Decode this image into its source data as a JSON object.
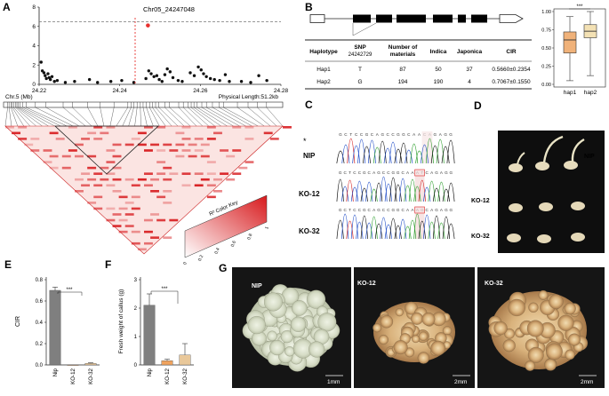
{
  "panels": {
    "A": {
      "letter": "A",
      "snp_label": "Chr05_24247048",
      "x_ticks": [
        "24.22",
        "24.24",
        "24.26",
        "24.28"
      ],
      "y_ticks": [
        "0",
        "2",
        "4",
        "6",
        "8"
      ],
      "chr_label": "Chr.5 (Mb)",
      "physical_length": "Physical Length:51.2kb",
      "color_key_title": "R² Color Key",
      "color_key_ticks": [
        "0",
        "0.2",
        "0.4",
        "0.6",
        "0.8",
        "1"
      ]
    },
    "B": {
      "letter": "B",
      "table_headers": [
        "Haplotype",
        "SNP 24242729",
        "Number of materials",
        "Indica",
        "Japonica",
        "CIR"
      ],
      "table_rows": [
        [
          "Hap1",
          "T",
          "87",
          "50",
          "37",
          "0.5660±0.2354"
        ],
        [
          "Hap2",
          "G",
          "194",
          "190",
          "4",
          "0.7067±0.1550"
        ]
      ],
      "box_y_ticks": [
        "0.00",
        "0.25",
        "0.50",
        "0.75",
        "1.00"
      ],
      "box_categories": [
        "hap1",
        "hap2"
      ],
      "significance": "***"
    },
    "C": {
      "letter": "C",
      "asterisk": "*",
      "samples": [
        {
          "label": "NIP",
          "seq": "GCTCCGCAGCCGGCAACAGAGG"
        },
        {
          "label": "KO-12",
          "seq": "GCTCCGCAGCCGGCAAATCAGAGG"
        },
        {
          "label": "KO-32",
          "seq": "GCTCCGCAGCCGGCAAAGCAGAGG"
        }
      ]
    },
    "D": {
      "letter": "D",
      "labels": [
        "NIP",
        "KO-12",
        "KO-32"
      ]
    },
    "E": {
      "letter": "E",
      "ylabel": "CIR",
      "y_ticks": [
        "0.0",
        "0.2",
        "0.4",
        "0.6",
        "0.8"
      ],
      "categories": [
        "Nip",
        "KO-12",
        "KO-32"
      ],
      "significance": "***"
    },
    "F": {
      "letter": "F",
      "ylabel": "Fresh weight of callus (g)",
      "y_ticks": [
        "0",
        "1",
        "2",
        "3"
      ],
      "categories": [
        "Nip",
        "KO-12",
        "KO-32"
      ],
      "significance": "***"
    },
    "G": {
      "letter": "G",
      "photos": [
        {
          "label": "NIP",
          "scale": "1mm"
        },
        {
          "label": "KO-12",
          "scale": "2mm"
        },
        {
          "label": "KO-32",
          "scale": "2mm"
        }
      ]
    }
  },
  "colors": {
    "ld_red": "#d7191c",
    "snp_red": "#e8312f",
    "hap1_box": "#f0b27a",
    "hap2_box": "#f3e1b4",
    "bar_gray": "#7f7f7f",
    "bar_orange": "#f0a35e",
    "bar_tan": "#e9c89a",
    "photo_dark": "#101010"
  },
  "chart_data": [
    {
      "type": "scatter",
      "title": "Chr05_24247048",
      "xlabel": "Chr.5 (Mb)",
      "ylabel": "",
      "xlim": [
        24.22,
        24.28
      ],
      "ylim": [
        0,
        8
      ],
      "threshold": 6,
      "highlight": {
        "x": 24.247,
        "y": 6.1
      },
      "points": [
        [
          24.2205,
          2.3
        ],
        [
          24.2208,
          1.4
        ],
        [
          24.2212,
          1.2
        ],
        [
          24.2215,
          0.9
        ],
        [
          24.2218,
          0.6
        ],
        [
          24.2222,
          1.1
        ],
        [
          24.2225,
          0.7
        ],
        [
          24.2228,
          0.5
        ],
        [
          24.2232,
          0.8
        ],
        [
          24.2238,
          0.3
        ],
        [
          24.2245,
          0.4
        ],
        [
          24.2265,
          0.2
        ],
        [
          24.2288,
          0.3
        ],
        [
          24.2325,
          0.5
        ],
        [
          24.2345,
          0.2
        ],
        [
          24.2378,
          0.3
        ],
        [
          24.2405,
          0.4
        ],
        [
          24.2435,
          0.2
        ],
        [
          24.2465,
          0.6
        ],
        [
          24.2472,
          1.4
        ],
        [
          24.2478,
          1.1
        ],
        [
          24.2485,
          0.8
        ],
        [
          24.2492,
          0.9
        ],
        [
          24.2498,
          0.5
        ],
        [
          24.2505,
          0.3
        ],
        [
          24.2512,
          1.0
        ],
        [
          24.2518,
          1.6
        ],
        [
          24.2525,
          1.3
        ],
        [
          24.2532,
          0.7
        ],
        [
          24.2545,
          0.4
        ],
        [
          24.2555,
          0.3
        ],
        [
          24.2575,
          1.2
        ],
        [
          24.2585,
          0.9
        ],
        [
          24.2595,
          1.8
        ],
        [
          24.2602,
          1.5
        ],
        [
          24.2608,
          1.1
        ],
        [
          24.2615,
          0.8
        ],
        [
          24.2625,
          0.6
        ],
        [
          24.2635,
          0.5
        ],
        [
          24.2648,
          0.4
        ],
        [
          24.2662,
          1.0
        ],
        [
          24.2672,
          0.3
        ],
        [
          24.2702,
          0.3
        ],
        [
          24.2725,
          0.2
        ],
        [
          24.2745,
          0.9
        ],
        [
          24.2765,
          0.4
        ]
      ]
    },
    {
      "type": "box",
      "categories": [
        "hap1",
        "hap2"
      ],
      "ylim": [
        0,
        1
      ],
      "stats": [
        {
          "name": "hap1",
          "min": 0.05,
          "q1": 0.43,
          "median": 0.61,
          "q3": 0.72,
          "max": 0.93
        },
        {
          "name": "hap2",
          "min": 0.12,
          "q1": 0.64,
          "median": 0.73,
          "q3": 0.82,
          "max": 1.0
        }
      ]
    },
    {
      "type": "bar",
      "ylabel": "CIR",
      "categories": [
        "Nip",
        "KO-12",
        "KO-32"
      ],
      "values": [
        0.7,
        0.0,
        0.015
      ],
      "errors": [
        0.03,
        0.0,
        0.005
      ],
      "ylim": [
        0,
        0.8
      ]
    },
    {
      "type": "bar",
      "ylabel": "Fresh weight of callus (g)",
      "categories": [
        "Nip",
        "KO-12",
        "KO-32"
      ],
      "values": [
        2.1,
        0.15,
        0.35
      ],
      "errors": [
        0.4,
        0.05,
        0.4
      ],
      "ylim": [
        0,
        3
      ]
    }
  ]
}
